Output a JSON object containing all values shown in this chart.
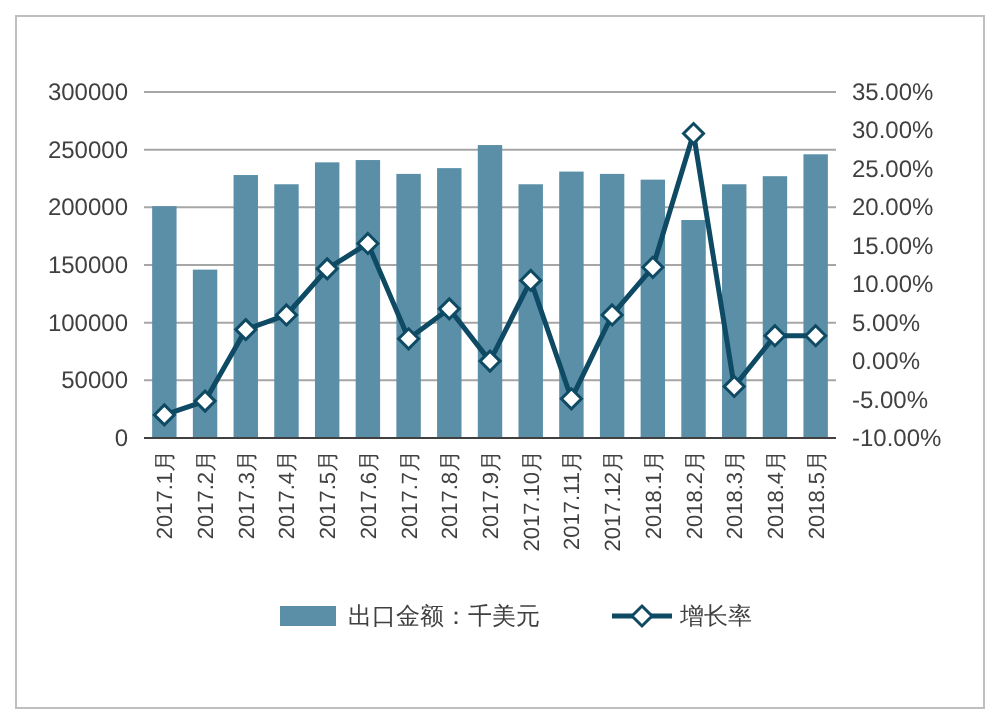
{
  "chart_data": {
    "type": "bar",
    "categories": [
      "2017.1月",
      "2017.2月",
      "2017.3月",
      "2017.4月",
      "2017.5月",
      "2017.6月",
      "2017.7月",
      "2017.8月",
      "2017.9月",
      "2017.10月",
      "2017.11月",
      "2017.12月",
      "2018.1月",
      "2018.2月",
      "2018.3月",
      "2018.4月",
      "2018.5月"
    ],
    "series": [
      {
        "name": "出口金额：千美元",
        "color": "#5b8fa8",
        "values": [
          201000,
          146000,
          228000,
          220000,
          239000,
          241000,
          229000,
          234000,
          254000,
          220000,
          231000,
          229000,
          224000,
          189000,
          220000,
          227000,
          246000
        ]
      },
      {
        "name": "增长率",
        "type": "line",
        "axis": "y2",
        "color": "#0e4a63",
        "marker": "diamond",
        "values": [
          -7.0,
          -5.2,
          4.1,
          6.0,
          12.0,
          15.3,
          2.9,
          6.8,
          0.0,
          10.5,
          -4.9,
          6.0,
          12.2,
          29.6,
          -3.3,
          3.3,
          3.3
        ]
      }
    ],
    "ylim": [
      0,
      300000
    ],
    "yticks": [
      0,
      50000,
      100000,
      150000,
      200000,
      250000,
      300000
    ],
    "y2lim": [
      -10,
      35
    ],
    "y2ticks": [
      {
        "value": -10,
        "label": "-10.00%"
      },
      {
        "value": -5,
        "label": "-5.00%"
      },
      {
        "value": 0,
        "label": "0.00%"
      },
      {
        "value": 5,
        "label": "5.00%"
      },
      {
        "value": 10,
        "label": "10.00%"
      },
      {
        "value": 15,
        "label": "15.00%"
      },
      {
        "value": 20,
        "label": "20.00%"
      },
      {
        "value": 25,
        "label": "25.00%"
      },
      {
        "value": 30,
        "label": "30.00%"
      },
      {
        "value": 35,
        "label": "35.00%"
      }
    ],
    "grid": "y",
    "legend": "bottom"
  }
}
